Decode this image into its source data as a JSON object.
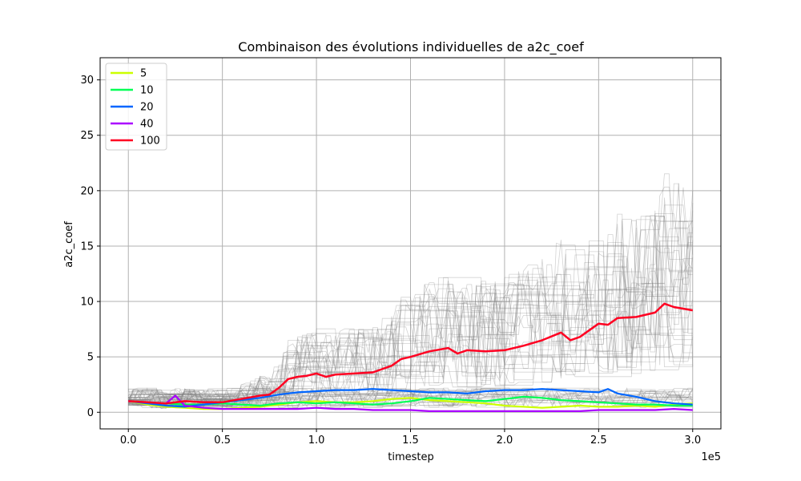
{
  "chart_data": {
    "type": "line",
    "title": "Combinaison des évolutions individuelles de a2c_coef",
    "xlabel": "timestep",
    "ylabel": "a2c_coef",
    "x_offset_label": "1e5",
    "xlim": [
      -15000,
      315000
    ],
    "ylim": [
      -1.5,
      32
    ],
    "x_ticks": [
      0,
      50000,
      100000,
      150000,
      200000,
      250000,
      300000
    ],
    "x_tick_labels": [
      "0.0",
      "0.5",
      "1.0",
      "1.5",
      "2.0",
      "2.5",
      "3.0"
    ],
    "y_ticks": [
      0,
      5,
      10,
      15,
      20,
      25,
      30
    ],
    "y_tick_labels": [
      "0",
      "5",
      "10",
      "15",
      "20",
      "25",
      "30"
    ],
    "grid": true,
    "legend_position": "top-left",
    "background_runs": {
      "color": "#808080",
      "description_free": true
    },
    "series": [
      {
        "name": "5",
        "color": "#ccff00",
        "x": [
          0,
          10000,
          20000,
          30000,
          40000,
          50000,
          60000,
          70000,
          80000,
          90000,
          100000,
          110000,
          120000,
          130000,
          140000,
          150000,
          160000,
          170000,
          180000,
          190000,
          200000,
          210000,
          220000,
          230000,
          240000,
          250000,
          260000,
          270000,
          280000,
          290000,
          300000
        ],
        "y": [
          1.0,
          0.7,
          0.5,
          0.4,
          0.3,
          0.3,
          0.4,
          0.5,
          0.7,
          0.9,
          1.0,
          0.9,
          0.9,
          1.0,
          1.2,
          1.3,
          1.1,
          1.0,
          0.9,
          0.8,
          0.6,
          0.5,
          0.4,
          0.5,
          0.6,
          0.5,
          0.5,
          0.6,
          0.5,
          0.7,
          0.8
        ]
      },
      {
        "name": "10",
        "color": "#00ff55",
        "x": [
          0,
          10000,
          20000,
          30000,
          40000,
          50000,
          60000,
          70000,
          80000,
          90000,
          100000,
          110000,
          120000,
          130000,
          140000,
          150000,
          160000,
          170000,
          180000,
          190000,
          200000,
          210000,
          220000,
          230000,
          240000,
          250000,
          260000,
          270000,
          280000,
          290000,
          300000
        ],
        "y": [
          1.0,
          0.9,
          0.8,
          0.7,
          0.7,
          0.8,
          0.7,
          0.6,
          0.8,
          0.9,
          0.8,
          0.9,
          0.8,
          0.7,
          0.8,
          1.0,
          1.3,
          1.2,
          1.1,
          1.0,
          1.2,
          1.4,
          1.3,
          1.1,
          1.0,
          0.9,
          0.8,
          0.7,
          0.7,
          0.6,
          0.6
        ]
      },
      {
        "name": "20",
        "color": "#0066ff",
        "x": [
          0,
          10000,
          20000,
          30000,
          40000,
          50000,
          60000,
          70000,
          80000,
          90000,
          100000,
          110000,
          120000,
          130000,
          140000,
          150000,
          160000,
          170000,
          180000,
          190000,
          200000,
          210000,
          220000,
          230000,
          240000,
          250000,
          255000,
          260000,
          270000,
          280000,
          290000,
          300000
        ],
        "y": [
          1.0,
          0.8,
          0.6,
          0.5,
          0.7,
          0.9,
          1.1,
          1.3,
          1.6,
          1.8,
          1.9,
          2.0,
          2.0,
          2.1,
          2.0,
          1.9,
          1.8,
          1.8,
          1.7,
          1.9,
          2.0,
          2.0,
          2.1,
          2.0,
          1.9,
          1.8,
          2.1,
          1.7,
          1.4,
          1.0,
          0.8,
          0.7
        ]
      },
      {
        "name": "40",
        "color": "#aa00ff",
        "x": [
          0,
          10000,
          20000,
          25000,
          30000,
          40000,
          50000,
          60000,
          70000,
          80000,
          90000,
          100000,
          110000,
          120000,
          130000,
          140000,
          150000,
          160000,
          170000,
          180000,
          190000,
          200000,
          210000,
          220000,
          230000,
          240000,
          250000,
          260000,
          270000,
          280000,
          290000,
          300000
        ],
        "y": [
          1.0,
          0.9,
          0.8,
          1.5,
          0.6,
          0.4,
          0.3,
          0.3,
          0.3,
          0.3,
          0.3,
          0.4,
          0.3,
          0.3,
          0.2,
          0.2,
          0.2,
          0.1,
          0.1,
          0.1,
          0.1,
          0.1,
          0.1,
          0.1,
          0.1,
          0.1,
          0.2,
          0.2,
          0.2,
          0.2,
          0.3,
          0.2
        ]
      },
      {
        "name": "100",
        "color": "#ff0022",
        "x": [
          0,
          10000,
          20000,
          30000,
          40000,
          50000,
          60000,
          70000,
          75000,
          80000,
          85000,
          90000,
          95000,
          100000,
          105000,
          110000,
          120000,
          130000,
          140000,
          145000,
          150000,
          160000,
          170000,
          175000,
          180000,
          190000,
          200000,
          210000,
          220000,
          230000,
          235000,
          240000,
          250000,
          255000,
          260000,
          270000,
          280000,
          285000,
          290000,
          300000
        ],
        "y": [
          1.0,
          0.9,
          0.8,
          1.0,
          0.9,
          0.9,
          1.2,
          1.5,
          1.6,
          2.2,
          3.0,
          3.2,
          3.3,
          3.5,
          3.2,
          3.4,
          3.5,
          3.6,
          4.2,
          4.8,
          5.0,
          5.5,
          5.8,
          5.3,
          5.6,
          5.5,
          5.6,
          6.0,
          6.5,
          7.2,
          6.5,
          6.8,
          8.0,
          7.9,
          8.5,
          8.6,
          9.0,
          9.8,
          9.5,
          9.2
        ]
      }
    ]
  }
}
